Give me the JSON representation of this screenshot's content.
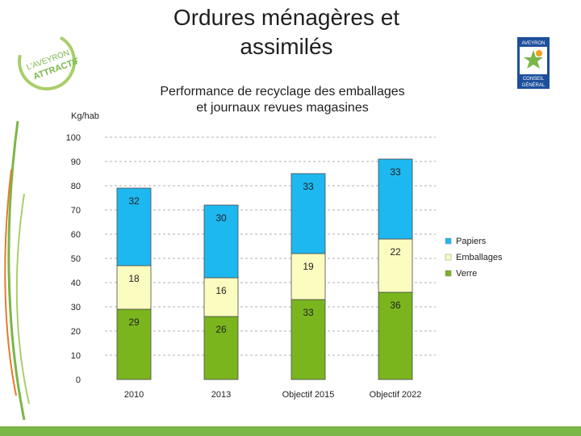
{
  "header": {
    "title_line1": "Ordures ménagères et",
    "title_line2": "assimilés"
  },
  "logos": {
    "left_line1": "L'AVEYRON",
    "left_line2": "ATTRACTIF",
    "right_top": "AVEYRON",
    "right_line1": "CONSEIL",
    "right_line2": "GÉNÉRAL"
  },
  "colors": {
    "papiers": "#1eb8f0",
    "emballages": "#fbfcc0",
    "verre": "#7ab51e",
    "grid": "#b0b0b0",
    "bar_outline": "#4a4a4a",
    "brand_green": "#7ab648",
    "brand_blue": "#1e4f9c"
  },
  "chart_data": {
    "type": "bar",
    "stacked": true,
    "title_line1": "Performance de recyclage des emballages",
    "title_line2": "et journaux revues magasines",
    "ylabel": "Kg/hab",
    "ylim": [
      0,
      100
    ],
    "yticks": [
      "0",
      "10",
      "20",
      "30",
      "40",
      "50",
      "60",
      "70",
      "80",
      "90",
      "100"
    ],
    "categories": [
      "2010",
      "2013",
      "Objectif 2015",
      "Objectif 2022"
    ],
    "series": [
      {
        "name": "Verre",
        "color_key": "verre",
        "values": [
          29,
          26,
          33,
          36
        ]
      },
      {
        "name": "Emballages",
        "color_key": "emballages",
        "values": [
          18,
          16,
          19,
          22
        ]
      },
      {
        "name": "Papiers",
        "color_key": "papiers",
        "values": [
          32,
          30,
          33,
          33
        ]
      }
    ],
    "legend_order": [
      "Papiers",
      "Emballages",
      "Verre"
    ],
    "legend_position": "right",
    "grid": true
  }
}
